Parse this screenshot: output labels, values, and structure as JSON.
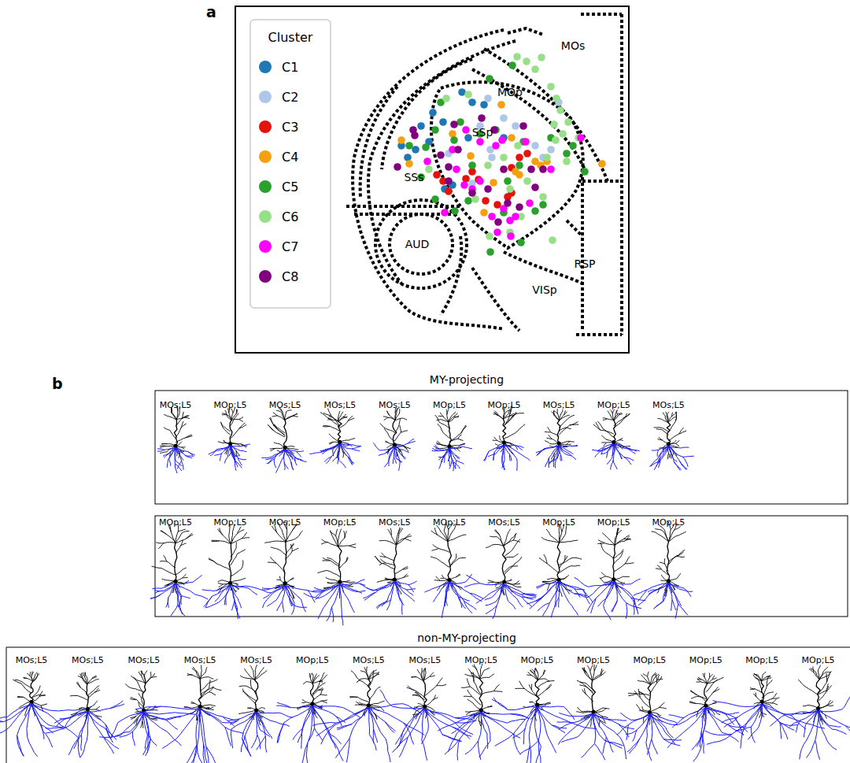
{
  "chart_data": {
    "type": "scatter",
    "legend_title": "Cluster",
    "legend": "upper left",
    "tick_labels": false,
    "grid": false,
    "xlim": [
      0,
      500
    ],
    "ylim": [
      0,
      440
    ],
    "marker": "circle",
    "series": [
      {
        "name": "C1",
        "color": "#1f77b4",
        "x": [
          288,
          301,
          251,
          236,
          246,
          264,
          219,
          316,
          296,
          276,
          266,
          211,
          341,
          229
        ],
        "y": [
          331,
          318,
          305,
          288,
          268,
          293,
          248,
          315,
          273,
          213,
          208,
          263,
          273,
          258
        ]
      },
      {
        "name": "C2",
        "color": "#aec7e8",
        "x": [
          321,
          341,
          311,
          381,
          401,
          391,
          324,
          356,
          301,
          411,
          271,
          326
        ],
        "y": [
          323,
          298,
          288,
          263,
          258,
          248,
          258,
          288,
          215,
          318,
          253,
          248
        ]
      },
      {
        "name": "C3",
        "color": "#e8120c",
        "x": [
          256,
          264,
          271,
          293,
          309,
          351,
          371,
          361,
          318,
          351,
          346,
          301,
          333
        ],
        "y": [
          226,
          218,
          205,
          221,
          220,
          235,
          253,
          248,
          193,
          203,
          198,
          230,
          188
        ]
      },
      {
        "name": "C4",
        "color": "#f5a00f",
        "x": [
          338,
          221,
          211,
          299,
          356,
          361,
          381,
          388,
          276,
          466,
          328,
          351,
          396,
          316
        ],
        "y": [
          315,
          240,
          270,
          250,
          230,
          226,
          243,
          238,
          278,
          240,
          216,
          273,
          243,
          178
        ]
      },
      {
        "name": "C5",
        "color": "#2ca02c",
        "x": [
          352,
          323,
          286,
          261,
          254,
          242,
          221,
          236,
          278,
          311,
          331,
          346,
          381,
          391,
          363,
          341,
          324,
          279,
          296,
          421,
          444,
          301,
          254,
          361,
          401,
          429,
          366
        ],
        "y": [
          365,
          348,
          293,
          318,
          283,
          261,
          263,
          223,
          270,
          278,
          283,
          218,
          180,
          188,
          140,
          178,
          128,
          180,
          193,
          253,
          230,
          238,
          195,
          238,
          273,
          263,
          268
        ]
      },
      {
        "name": "C6",
        "color": "#98df8a",
        "x": [
          358,
          370,
          389,
          381,
          401,
          408,
          413,
          405,
          423,
          416,
          407,
          396,
          359,
          341,
          321,
          305,
          371,
          391,
          349,
          323,
          363,
          246,
          403,
          296,
          268,
          349,
          421,
          436
        ],
        "y": [
          376,
          370,
          375,
          360,
          338,
          323,
          308,
          290,
          293,
          278,
          270,
          248,
          263,
          248,
          238,
          195,
          218,
          198,
          153,
          148,
          173,
          233,
          143,
          328,
          323,
          208,
          243,
          273
        ]
      },
      {
        "name": "C7",
        "color": "#ff00ff",
        "x": [
          311,
          339,
          293,
          276,
          281,
          331,
          401,
          439,
          349,
          356,
          326,
          341,
          301,
          266,
          333,
          350,
          374,
          291,
          311,
          244,
          369
        ],
        "y": [
          268,
          270,
          283,
          258,
          233,
          263,
          233,
          273,
          168,
          173,
          173,
          183,
          208,
          178,
          153,
          148,
          190,
          213,
          218,
          243,
          268
        ]
      },
      {
        "name": "C8",
        "color": "#800080",
        "x": [
          313,
          278,
          271,
          283,
          329,
          366,
          391,
          321,
          334,
          346,
          361,
          206,
          226,
          228,
          301,
          271,
          341,
          376,
          381,
          261
        ],
        "y": [
          298,
          290,
          236,
          258,
          283,
          288,
          233,
          208,
          166,
          190,
          185,
          236,
          283,
          276,
          203,
          218,
          233,
          233,
          210,
          251
        ]
      }
    ],
    "annotations": [
      {
        "text": "MOs",
        "x": 429,
        "y": 390
      },
      {
        "text": "MOp",
        "x": 349,
        "y": 331
      },
      {
        "text": "SSp",
        "x": 314,
        "y": 280
      },
      {
        "text": "SSs",
        "x": 227,
        "y": 223
      },
      {
        "text": "AUD",
        "x": 231,
        "y": 138
      },
      {
        "text": "RSP",
        "x": 444,
        "y": 113
      },
      {
        "text": "VISp",
        "x": 393,
        "y": 80
      }
    ]
  },
  "panel_labels": [
    "a",
    "b"
  ],
  "morphology": {
    "groups": [
      {
        "title": "MY-projecting",
        "rows": [
          [
            "MOs;L5",
            "MOp;L5",
            "MOs;L5",
            "MOs;L5",
            "MOs;L5",
            "MOp;L5",
            "MOp;L5",
            "MOs;L5",
            "MOp;L5",
            "MOs;L5"
          ],
          [
            "MOp;L5",
            "MOp;L5",
            "MOs;L5",
            "MOp;L5",
            "MOs;L5",
            "MOp;L5",
            "MOs;L5",
            "MOp;L5",
            "MOp;L5",
            "MOp;L5"
          ]
        ]
      },
      {
        "title": "non-MY-projecting",
        "rows": [
          [
            "MOs;L5",
            "MOs;L5",
            "MOs;L5",
            "MOs;L5",
            "MOs;L5",
            "MOp;L5",
            "MOs;L5",
            "MOs;L5",
            "MOp;L5",
            "MOp;L5",
            "MOp;L5",
            "MOp;L5",
            "MOp;L5",
            "MOp;L5",
            "MOp;L5"
          ]
        ]
      }
    ]
  }
}
